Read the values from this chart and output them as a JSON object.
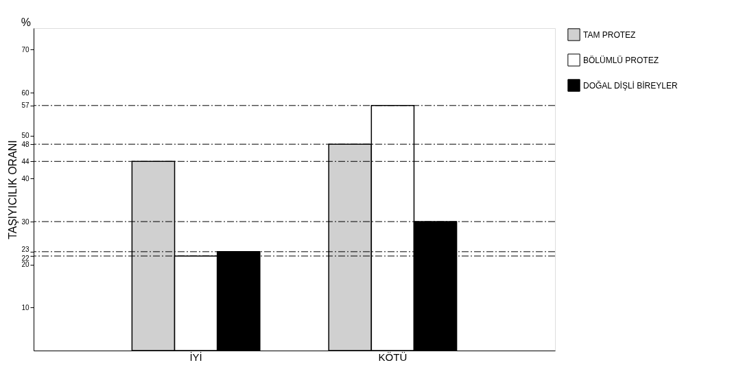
{
  "chart_data": {
    "type": "bar",
    "ylabel": "TAŞIYICILIK ORANI",
    "annotations": [
      "%"
    ],
    "categories": [
      "İYİ",
      "KÖTÜ"
    ],
    "series": [
      {
        "name": "TAM PROTEZ",
        "color": "#d0d0d0",
        "values": [
          44,
          48
        ]
      },
      {
        "name": "BÖLÜMLÜ PROTEZ",
        "color": "#ffffff",
        "values": [
          22,
          57
        ]
      },
      {
        "name": "DOĞAL DİŞLİ BİREYLER",
        "color": "#000000",
        "values": [
          23,
          30
        ]
      }
    ],
    "ylim": [
      0,
      75
    ],
    "yticks": [
      10,
      20,
      22,
      23,
      30,
      40,
      44,
      48,
      50,
      57,
      60,
      70
    ],
    "ref_lines": [
      {
        "axis": "y",
        "value": 57,
        "line_style": "dashdot"
      },
      {
        "axis": "y",
        "value": 48,
        "line_style": "dashdot"
      },
      {
        "axis": "y",
        "value": 44,
        "line_style": "dashdot"
      },
      {
        "axis": "y",
        "value": 30,
        "line_style": "dashdot"
      },
      {
        "axis": "y",
        "value": 23,
        "line_style": "dashdot"
      },
      {
        "axis": "y",
        "value": 22,
        "line_style": "dashdot"
      }
    ],
    "grid": false,
    "legend": "top right"
  }
}
